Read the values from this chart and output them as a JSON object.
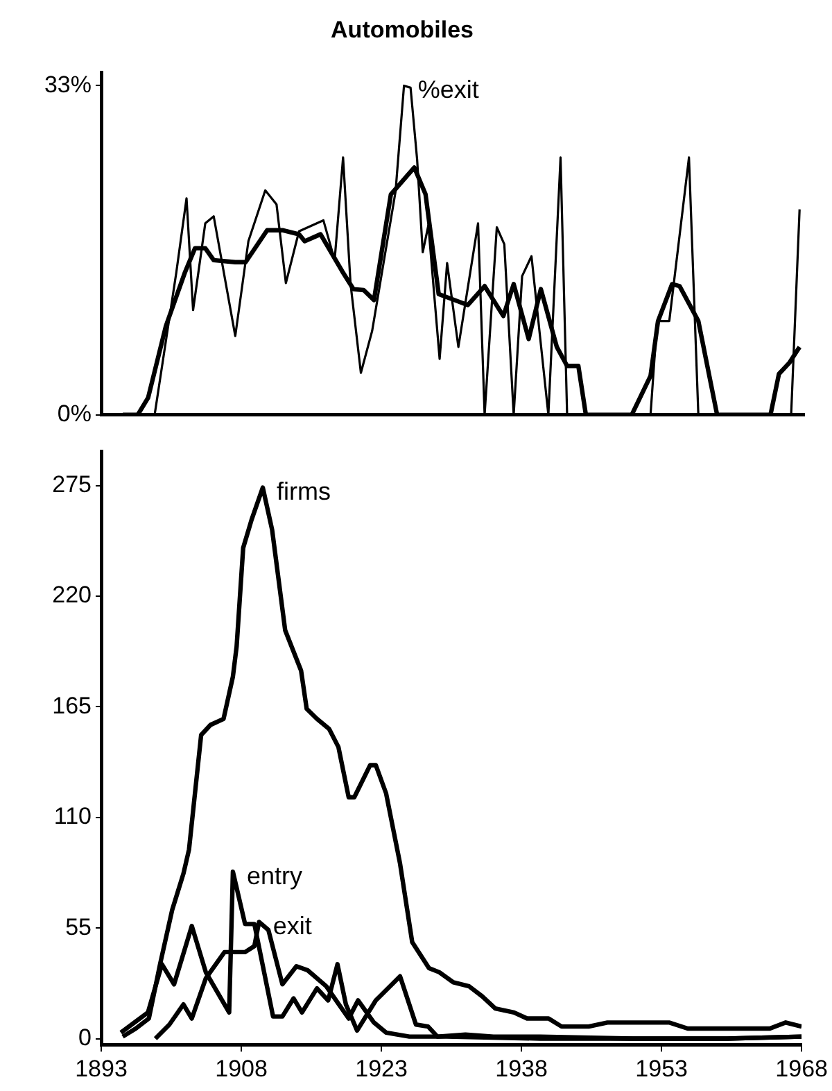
{
  "chart_data": [
    {
      "type": "line",
      "title": "Automobiles",
      "xlim": [
        1893,
        1968
      ],
      "ylim": [
        0,
        34.3
      ],
      "yticks": [
        {
          "value": 0,
          "label": "0%"
        },
        {
          "value": 33,
          "label": "33%"
        }
      ],
      "tick_labels": "y",
      "grid": false,
      "series": [
        {
          "name": "%exit",
          "color": "#000000",
          "x": [
            1898.7,
            1901,
            1902.1,
            1902.8,
            1904.1,
            1905,
            1907.3,
            1908.7,
            1910.5,
            1911.7,
            1912.7,
            1914.1,
            1916.7,
            1917.9,
            1918.8,
            1919.6,
            1920.7,
            1921.9,
            1924.4,
            1925.3,
            1926,
            1926.7,
            1927.3,
            1927.9,
            1929.1,
            1929.9,
            1931.1,
            1933.2,
            1933.9,
            1935.2,
            1936,
            1937,
            1937.9,
            1938.9,
            1940.7,
            1942,
            1942.7,
            1951.6,
            1952.3,
            1953.6,
            1955.7,
            1956.7,
            1966.6,
            1967.5
          ],
          "values": [
            0,
            14.2,
            21.7,
            10.5,
            19.2,
            19.9,
            7.9,
            17.4,
            22.5,
            21.1,
            13.2,
            18.4,
            19.5,
            15.5,
            25.8,
            13.1,
            4.2,
            8.4,
            22.4,
            33,
            32.8,
            25.6,
            16.3,
            19,
            5.6,
            15.2,
            6.8,
            19.2,
            0,
            18.8,
            17.1,
            0,
            13.9,
            15.9,
            0,
            25.8,
            0,
            0,
            9.4,
            9.4,
            25.8,
            0,
            0,
            20.6
          ]
        },
        {
          "color": "#000000",
          "x": [
            1895.3,
            1896.9,
            1898,
            1899.9,
            1901.9,
            1903,
            1904.1,
            1905,
            1907.3,
            1908.4,
            1910.7,
            1912.4,
            1914.1,
            1914.7,
            1916.4,
            1918.7,
            1919.9,
            1921,
            1922.1,
            1923.9,
            1926.4,
            1927.6,
            1929,
            1930.7,
            1932.1,
            1933.9,
            1935.9,
            1937,
            1938.6,
            1939.9,
            1941.6,
            1942.7,
            1943.9,
            1944.7,
            1949.6,
            1951.6,
            1952.4,
            1953.9,
            1954.7,
            1956.7,
            1958.7,
            1964.4,
            1965.3,
            1966.4,
            1967.5
          ],
          "values": [
            0,
            0,
            1.7,
            8.9,
            14.2,
            16.7,
            16.7,
            15.5,
            15.3,
            15.3,
            18.5,
            18.5,
            18.1,
            17.4,
            18.1,
            14.4,
            12.6,
            12.5,
            11.5,
            22.1,
            24.8,
            22.1,
            12.1,
            11.5,
            11,
            12.9,
            9.9,
            13.1,
            7.6,
            12.6,
            6.8,
            4.9,
            4.9,
            0,
            0,
            3.9,
            9.4,
            13.1,
            12.9,
            9.4,
            0,
            0,
            4.1,
            5.2,
            6.8
          ]
        }
      ]
    },
    {
      "type": "line",
      "xlim": [
        1893,
        1968
      ],
      "xticks": [
        1893,
        1908,
        1923,
        1938,
        1953,
        1968
      ],
      "ylim": [
        -3,
        292
      ],
      "yticks": [
        0,
        55,
        110,
        165,
        220,
        275
      ],
      "grid": false,
      "series": [
        {
          "name": "firms",
          "color": "#000000",
          "x": [
            1895.3,
            1896.7,
            1898.1,
            1899.3,
            1900.6,
            1901.8,
            1902.4,
            1903.7,
            1904.7,
            1906.1,
            1907.1,
            1907.5,
            1908.2,
            1909.1,
            1910.3,
            1911.3,
            1912.7,
            1914.4,
            1915,
            1916.1,
            1917.4,
            1918.4,
            1919.5,
            1920.1,
            1921.8,
            1922.4,
            1923.5,
            1925,
            1926.3,
            1928.1,
            1929.2,
            1930.7,
            1932.4,
            1933.8,
            1935.2,
            1937.2,
            1938.6,
            1940.9,
            1942.3,
            1945.2,
            1947.2,
            1953.8,
            1955.8,
            1964.6,
            1966.3,
            1968
          ],
          "values": [
            1,
            5,
            10,
            37,
            64,
            82,
            94,
            151,
            156,
            159,
            180,
            195,
            244,
            258,
            274,
            253,
            203,
            183,
            164,
            159,
            154,
            145,
            120,
            120,
            136,
            136,
            122,
            87,
            48,
            35,
            33,
            28,
            26,
            21,
            15,
            13,
            10,
            10,
            6,
            6,
            8,
            8,
            5,
            5,
            8,
            6
          ]
        },
        {
          "name": "entry",
          "color": "#000000",
          "x": [
            1895.1,
            1898,
            1899.5,
            1900.8,
            1902.7,
            1904.2,
            1906.7,
            1907.1,
            1908.4,
            1909.4,
            1911.4,
            1912.4,
            1913.6,
            1914.5,
            1916.1,
            1917.3,
            1918.3,
            1919.2,
            1920.4,
            1922.4,
            1925,
            1926.7,
            1928,
            1929,
            1932,
            1935,
            1940,
            1950,
            1960,
            1968
          ],
          "values": [
            3,
            13,
            37,
            27,
            56,
            33,
            13,
            83,
            57,
            57,
            11,
            11,
            20,
            13,
            25,
            19,
            37,
            17,
            4,
            19,
            31,
            7,
            6,
            1,
            2,
            1,
            1,
            0,
            0,
            1
          ]
        },
        {
          "name": "exit",
          "color": "#000000",
          "x": [
            1898.8,
            1900.3,
            1901.8,
            1902.7,
            1904.2,
            1906.2,
            1908.4,
            1909.4,
            1909.9,
            1910.9,
            1912.4,
            1913.9,
            1915.1,
            1917.1,
            1918.3,
            1919.5,
            1920.5,
            1922.2,
            1923.5,
            1926,
            1930,
            1940,
            1950,
            1960,
            1968
          ],
          "values": [
            0,
            7,
            17,
            10,
            30,
            43,
            43,
            46,
            58,
            54,
            27,
            36,
            34,
            26,
            18,
            10,
            19,
            8,
            3,
            1,
            1,
            0,
            0,
            0,
            1
          ]
        }
      ]
    }
  ]
}
